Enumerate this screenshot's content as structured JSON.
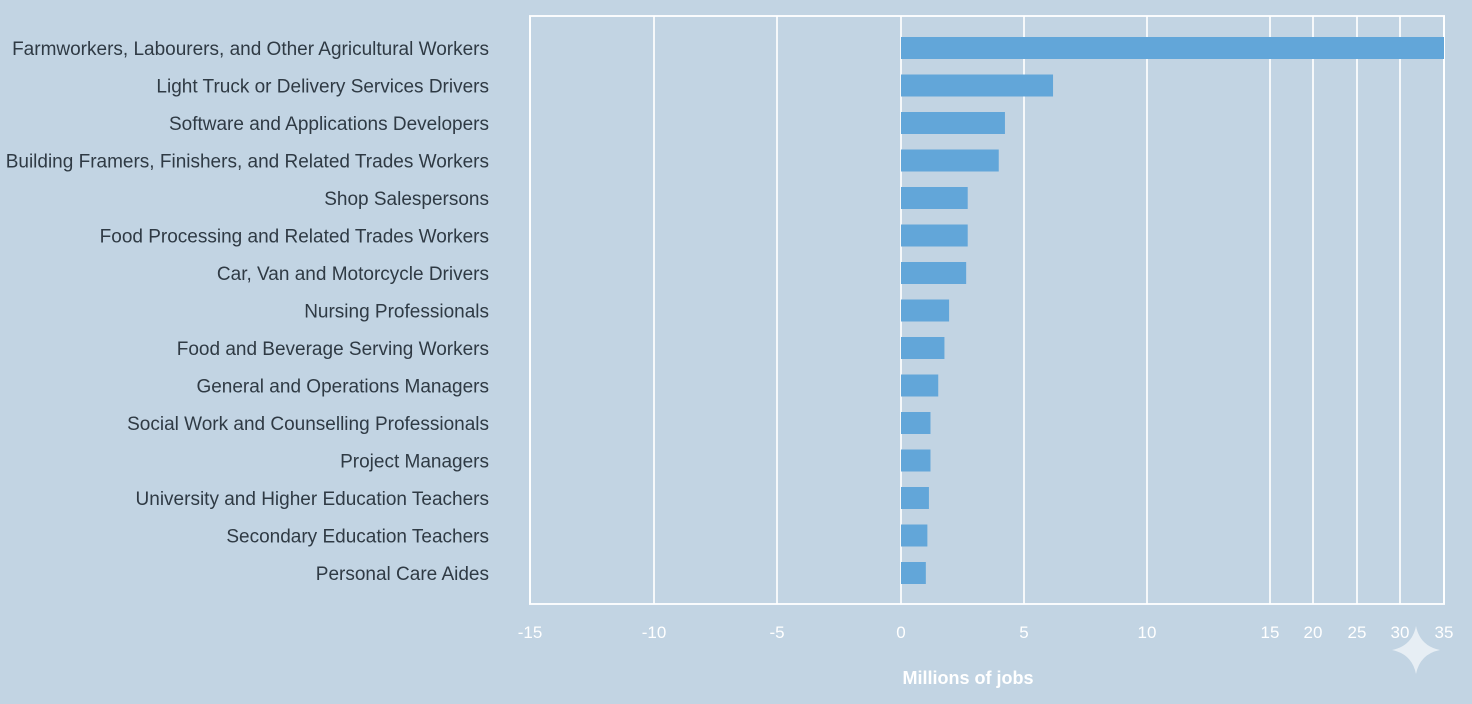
{
  "chart_data": {
    "type": "bar",
    "orientation": "horizontal",
    "categories": [
      "Farmworkers, Labourers, and Other Agricultural Workers",
      "Light Truck or Delivery Services Drivers",
      "Software and Applications Developers",
      "Building Framers, Finishers, and Related Trades Workers",
      "Shop Salespersons",
      "Food Processing and Related Trades Workers",
      "Car, Van and Motorcycle Drivers",
      "Nursing Professionals",
      "Food and Beverage Serving Workers",
      "General and Operations Managers",
      "Social Work and Counselling Professionals",
      "Project Managers",
      "University and Higher Education Teachers",
      "Secondary Education Teachers",
      "Personal Care Aides"
    ],
    "values": [
      35,
      9.8,
      6.7,
      6.3,
      4.3,
      4.3,
      4.2,
      3.1,
      2.8,
      2.4,
      1.9,
      1.9,
      1.8,
      1.7,
      1.6
    ],
    "xlabel": "Millions of jobs",
    "xticks": [
      -15,
      -10,
      -5,
      0,
      5,
      10,
      15,
      20,
      25,
      30,
      35
    ],
    "xlim": [
      -15,
      35
    ],
    "grid": true,
    "bar_color": "#62a6d9"
  }
}
